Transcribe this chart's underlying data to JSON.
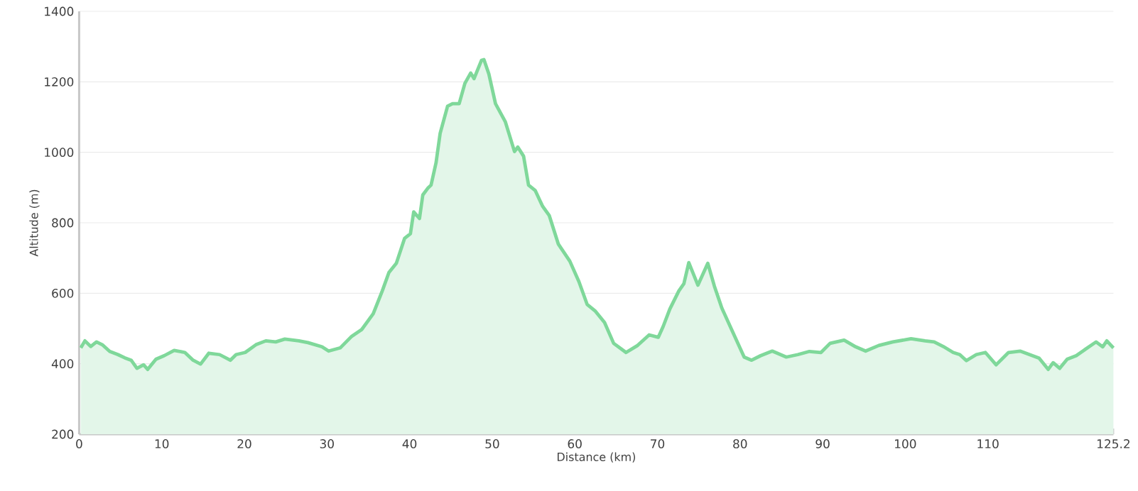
{
  "chart_data": {
    "type": "area",
    "xlabel": "Distance (km)",
    "ylabel": "Altitude (m)",
    "xlim": [
      0,
      125.2
    ],
    "ylim": [
      200,
      1400
    ],
    "xticks": [
      0,
      10,
      20,
      30,
      40,
      50,
      60,
      70,
      80,
      90,
      100,
      110,
      125.2
    ],
    "yticks": [
      200,
      400,
      600,
      800,
      1000,
      1200,
      1400
    ],
    "grid": "y",
    "series": [
      {
        "color": "#7fd89a",
        "x": [
          0.2,
          0.7,
          1.4,
          2.1,
          2.8,
          3.7,
          4.7,
          5.5,
          6.3,
          7.0,
          7.8,
          8.3,
          9.3,
          10.3,
          11.5,
          12.8,
          13.8,
          14.7,
          15.7,
          17.0,
          18.3,
          19.0,
          20.1,
          21.4,
          22.6,
          23.8,
          24.9,
          26.6,
          27.7,
          29.4,
          30.2,
          31.6,
          33.0,
          34.2,
          35.6,
          36.7,
          37.5,
          38.4,
          39.4,
          40.1,
          40.5,
          41.2,
          41.6,
          42.2,
          42.6,
          43.2,
          43.7,
          44.6,
          45.2,
          46.0,
          46.7,
          47.4,
          47.8,
          48.7,
          49.0,
          49.6,
          50.4,
          51.6,
          52.7,
          53.1,
          53.8,
          54.4,
          55.2,
          56.1,
          56.9,
          58.0,
          59.4,
          60.5,
          61.5,
          62.5,
          63.6,
          64.7,
          66.2,
          67.6,
          69.0,
          70.1,
          70.7,
          71.5,
          72.6,
          73.2,
          73.8,
          74.9,
          76.1,
          76.9,
          77.8,
          79.1,
          80.5,
          81.4,
          82.5,
          83.9,
          85.6,
          87.0,
          88.4,
          89.8,
          90.9,
          92.6,
          94.0,
          95.2,
          96.8,
          98.5,
          100.7,
          102.4,
          103.5,
          104.6,
          105.8,
          106.6,
          107.4,
          108.6,
          109.7,
          111.0,
          112.5,
          113.9,
          116.2,
          117.3,
          117.9,
          118.7,
          119.6,
          120.7,
          121.8,
          123.1,
          123.9,
          124.4,
          125.2
        ],
        "values": [
          445,
          465,
          449,
          462,
          454,
          435,
          426,
          417,
          410,
          387,
          397,
          384,
          413,
          423,
          438,
          432,
          410,
          399,
          430,
          426,
          410,
          426,
          432,
          454,
          465,
          462,
          470,
          465,
          460,
          448,
          436,
          445,
          478,
          497,
          542,
          607,
          659,
          685,
          756,
          769,
          831,
          812,
          879,
          898,
          907,
          970,
          1054,
          1131,
          1138,
          1138,
          1196,
          1225,
          1209,
          1261,
          1263,
          1222,
          1138,
          1086,
          1002,
          1015,
          989,
          907,
          892,
          847,
          821,
          740,
          691,
          633,
          568,
          549,
          517,
          458,
          432,
          452,
          482,
          475,
          506,
          555,
          607,
          627,
          687,
          623,
          685,
          620,
          558,
          491,
          419,
          410,
          423,
          436,
          419,
          426,
          435,
          432,
          458,
          467,
          448,
          436,
          452,
          462,
          471,
          465,
          462,
          449,
          432,
          426,
          409,
          426,
          432,
          397,
          432,
          436,
          416,
          384,
          403,
          387,
          413,
          423,
          441,
          462,
          448,
          465,
          445
        ]
      }
    ]
  }
}
